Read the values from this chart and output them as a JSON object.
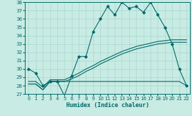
{
  "title": "",
  "xlabel": "Humidex (Indice chaleur)",
  "ylabel": "",
  "bg_color": "#c8ebe3",
  "grid_color": "#a8d8d0",
  "line_color": "#006868",
  "xlim": [
    -0.5,
    22.5
  ],
  "ylim": [
    27,
    38
  ],
  "yticks": [
    27,
    28,
    29,
    30,
    31,
    32,
    33,
    34,
    35,
    36,
    37,
    38
  ],
  "xticks": [
    0,
    1,
    2,
    3,
    4,
    5,
    6,
    7,
    8,
    9,
    10,
    11,
    12,
    13,
    14,
    15,
    16,
    17,
    18,
    19,
    20,
    21,
    22
  ],
  "main_x": [
    0,
    1,
    2,
    3,
    4,
    5,
    6,
    7,
    8,
    9,
    10,
    11,
    12,
    13,
    14,
    15,
    16,
    17,
    18,
    19,
    20,
    21,
    22
  ],
  "main_y": [
    30.0,
    29.5,
    28.0,
    28.5,
    28.5,
    26.8,
    29.2,
    31.5,
    31.5,
    34.5,
    36.0,
    37.5,
    36.5,
    38.0,
    37.3,
    37.5,
    36.8,
    38.0,
    36.5,
    35.0,
    33.0,
    30.0,
    28.0
  ],
  "line_flat_x": [
    0,
    1,
    2,
    3,
    4,
    5,
    6,
    7,
    8,
    9,
    10,
    11,
    12,
    13,
    14,
    15,
    16,
    17,
    18,
    19,
    20,
    21,
    22
  ],
  "line_flat_y": [
    28.2,
    28.2,
    27.5,
    28.5,
    28.5,
    28.5,
    28.5,
    28.5,
    28.5,
    28.5,
    28.5,
    28.5,
    28.5,
    28.5,
    28.5,
    28.5,
    28.5,
    28.5,
    28.5,
    28.5,
    28.5,
    28.5,
    28.0
  ],
  "line_reg1_x": [
    0,
    1,
    2,
    3,
    4,
    5,
    6,
    7,
    8,
    9,
    10,
    11,
    12,
    13,
    14,
    15,
    16,
    17,
    18,
    19,
    20,
    21,
    22
  ],
  "line_reg1_y": [
    28.2,
    28.2,
    27.5,
    28.5,
    28.5,
    28.5,
    28.8,
    29.2,
    29.7,
    30.1,
    30.6,
    31.0,
    31.4,
    31.8,
    32.1,
    32.4,
    32.6,
    32.8,
    33.0,
    33.1,
    33.2,
    33.2,
    33.2
  ],
  "line_reg2_x": [
    0,
    1,
    2,
    3,
    4,
    5,
    6,
    7,
    8,
    9,
    10,
    11,
    12,
    13,
    14,
    15,
    16,
    17,
    18,
    19,
    20,
    21,
    22
  ],
  "line_reg2_y": [
    28.5,
    28.5,
    27.8,
    28.7,
    28.7,
    28.7,
    29.1,
    29.5,
    30.0,
    30.4,
    30.9,
    31.3,
    31.7,
    32.1,
    32.4,
    32.7,
    32.9,
    33.1,
    33.3,
    33.4,
    33.5,
    33.5,
    33.5
  ]
}
